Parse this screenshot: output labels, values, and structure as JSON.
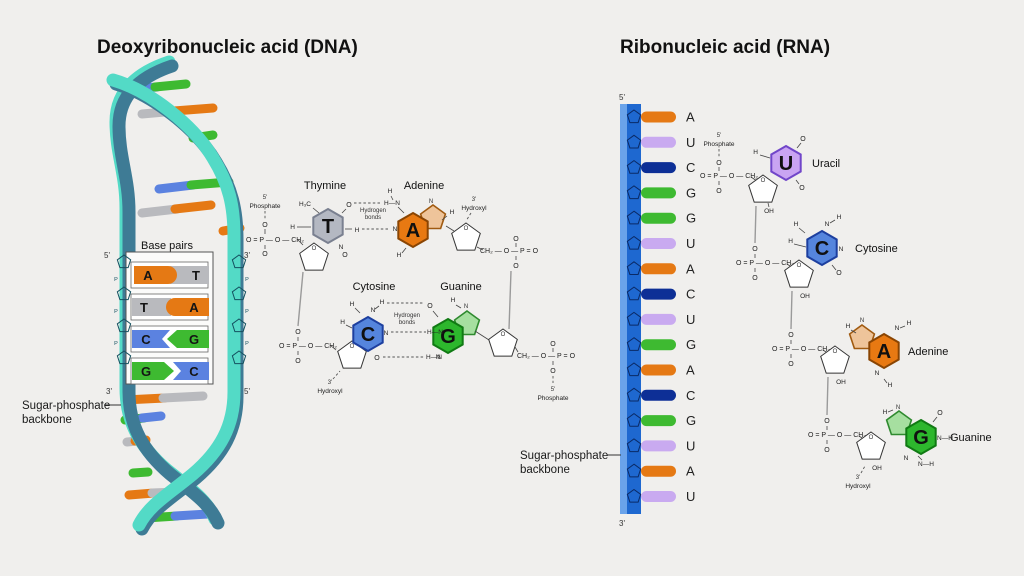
{
  "title_dna": "Deoxyribonucleic acid (DNA)",
  "title_rna": "Ribonucleic acid (RNA)",
  "dna": {
    "ends": {
      "top_left": "5'",
      "top_right": "3'",
      "bottom_left": "3'",
      "bottom_right": "5'"
    },
    "base_pairs_box": {
      "heading": "Base pairs",
      "pairs": [
        [
          "A",
          "T"
        ],
        [
          "T",
          "A"
        ],
        [
          "C",
          "G"
        ],
        [
          "G",
          "C"
        ]
      ]
    },
    "backbone_label": [
      "Sugar-phosphate",
      "backbone"
    ],
    "molecules": {
      "thymine": {
        "letter": "T",
        "name": "Thymine"
      },
      "adenine": {
        "letter": "A",
        "name": "Adenine"
      },
      "cytosine": {
        "letter": "C",
        "name": "Cytosine"
      },
      "guanine": {
        "letter": "G",
        "name": "Guanine"
      }
    }
  },
  "rna": {
    "five_prime": "5'",
    "three_prime": "3'",
    "sequence": [
      "A",
      "U",
      "C",
      "G",
      "G",
      "U",
      "A",
      "C",
      "U",
      "G",
      "A",
      "C",
      "G",
      "U",
      "A",
      "U"
    ],
    "backbone_label": [
      "Sugar-phosphate",
      "backbone"
    ],
    "molecules": {
      "uracil": {
        "letter": "U",
        "name": "Uracil"
      },
      "cytosine": {
        "letter": "C",
        "name": "Cytosine"
      },
      "adenine": {
        "letter": "A",
        "name": "Adenine"
      },
      "guanine": {
        "letter": "G",
        "name": "Guanine"
      }
    }
  },
  "chem": {
    "O": "O",
    "P": "P",
    "N": "N",
    "H": "H",
    "OH": "OH",
    "H3C": "H₃C",
    "NH": "N—H",
    "HN": "H—N",
    "phos_row": "O = P — O — CH₂",
    "phos_row_rev": "CH₂ — O — P = O",
    "five_prime": "5'",
    "three_prime": "3'",
    "phosphate": "Phosphate",
    "hydroxyl": "Hydroxyl",
    "hydrogen": "Hydrogen",
    "bonds": "bonds"
  },
  "colors": {
    "background": "#f0efed",
    "strand_turquoise": "#53dac6",
    "strand_turquoise_light": "#a9efe2",
    "strand_steel": "#3e7b95",
    "rna_backbone": "#1e68d0",
    "rna_backbone_light": "#6aa3ea",
    "ring_outline": "#0a2a66",
    "base_bars": {
      "A": "#e57914",
      "T": "#b9babe",
      "U": "#c9aaf0",
      "C": "#5b82e0",
      "C_rna": "#0d2f96",
      "G": "#3eba31"
    },
    "hexagons": {
      "T": "#b4b8c2",
      "A": "#e87912",
      "C": "#5585dd",
      "G": "#2db72d",
      "U": "#c9a4f2",
      "A_pentagon": "#eec49a",
      "G_pentagon": "#a6dfa0"
    }
  }
}
